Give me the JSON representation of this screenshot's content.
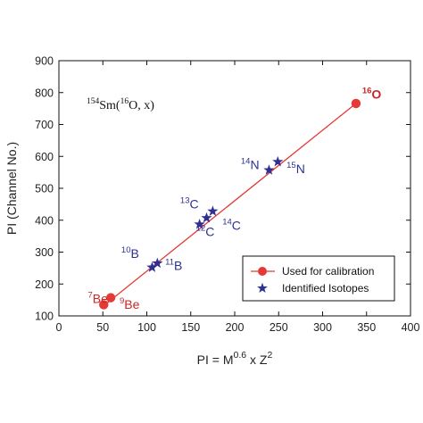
{
  "chart_data": {
    "type": "scatter",
    "x_axis": {
      "label_parts": [
        {
          "t": "PI = M",
          "sup": false
        },
        {
          "t": "0.6",
          "sup": true
        },
        {
          "t": " x Z",
          "sup": false
        },
        {
          "t": "2",
          "sup": true
        }
      ],
      "lim": [
        0,
        400
      ],
      "ticks": [
        0,
        50,
        100,
        150,
        200,
        250,
        300,
        350,
        400
      ]
    },
    "y_axis": {
      "label": "PI (Channel No.)",
      "lim": [
        100,
        900
      ],
      "ticks": [
        100,
        200,
        300,
        400,
        500,
        600,
        700,
        800,
        900
      ]
    },
    "reaction_label_parts": [
      {
        "t": "154",
        "sup": true
      },
      {
        "t": "Sm(",
        "sup": false
      },
      {
        "t": "16",
        "sup": true
      },
      {
        "t": "O, x)",
        "sup": false
      }
    ],
    "series": [
      {
        "name": "Used for calibration",
        "marker": "circle",
        "color": "#e53935",
        "points": [
          [
            51,
            135
          ],
          [
            59,
            157
          ],
          [
            338,
            766
          ]
        ]
      },
      {
        "name": "Identified Isotopes",
        "marker": "star",
        "color": "#2e3192",
        "points": [
          [
            106,
            252
          ],
          [
            112,
            265
          ],
          [
            160,
            387
          ],
          [
            168,
            407
          ],
          [
            175,
            428
          ],
          [
            239,
            557
          ],
          [
            249,
            583
          ]
        ]
      }
    ],
    "fit_line": {
      "color": "#e53935",
      "from": [
        51,
        132
      ],
      "to": [
        338,
        766
      ]
    },
    "annotations": [
      {
        "mass": "7",
        "el": "Be",
        "x": 33,
        "y": 140,
        "color": "red"
      },
      {
        "mass": "9",
        "el": "Be",
        "x": 69,
        "y": 122,
        "color": "red"
      },
      {
        "mass": "16",
        "el": "O",
        "x": 345,
        "y": 781,
        "color": "red",
        "bold": true
      },
      {
        "mass": "10",
        "el": "B",
        "x": 71,
        "y": 282,
        "color": "blue"
      },
      {
        "mass": "11",
        "el": "B",
        "x": 121,
        "y": 244,
        "color": "blue"
      },
      {
        "mass": "12",
        "el": "C",
        "x": 156,
        "y": 350,
        "color": "blue"
      },
      {
        "mass": "13",
        "el": "C",
        "x": 138,
        "y": 437,
        "color": "blue"
      },
      {
        "mass": "14",
        "el": "C",
        "x": 186,
        "y": 370,
        "color": "blue"
      },
      {
        "mass": "14",
        "el": "N",
        "x": 207,
        "y": 560,
        "color": "blue"
      },
      {
        "mass": "15",
        "el": "N",
        "x": 259,
        "y": 548,
        "color": "blue"
      }
    ],
    "legend_position": "bottom-right",
    "grid": false
  }
}
